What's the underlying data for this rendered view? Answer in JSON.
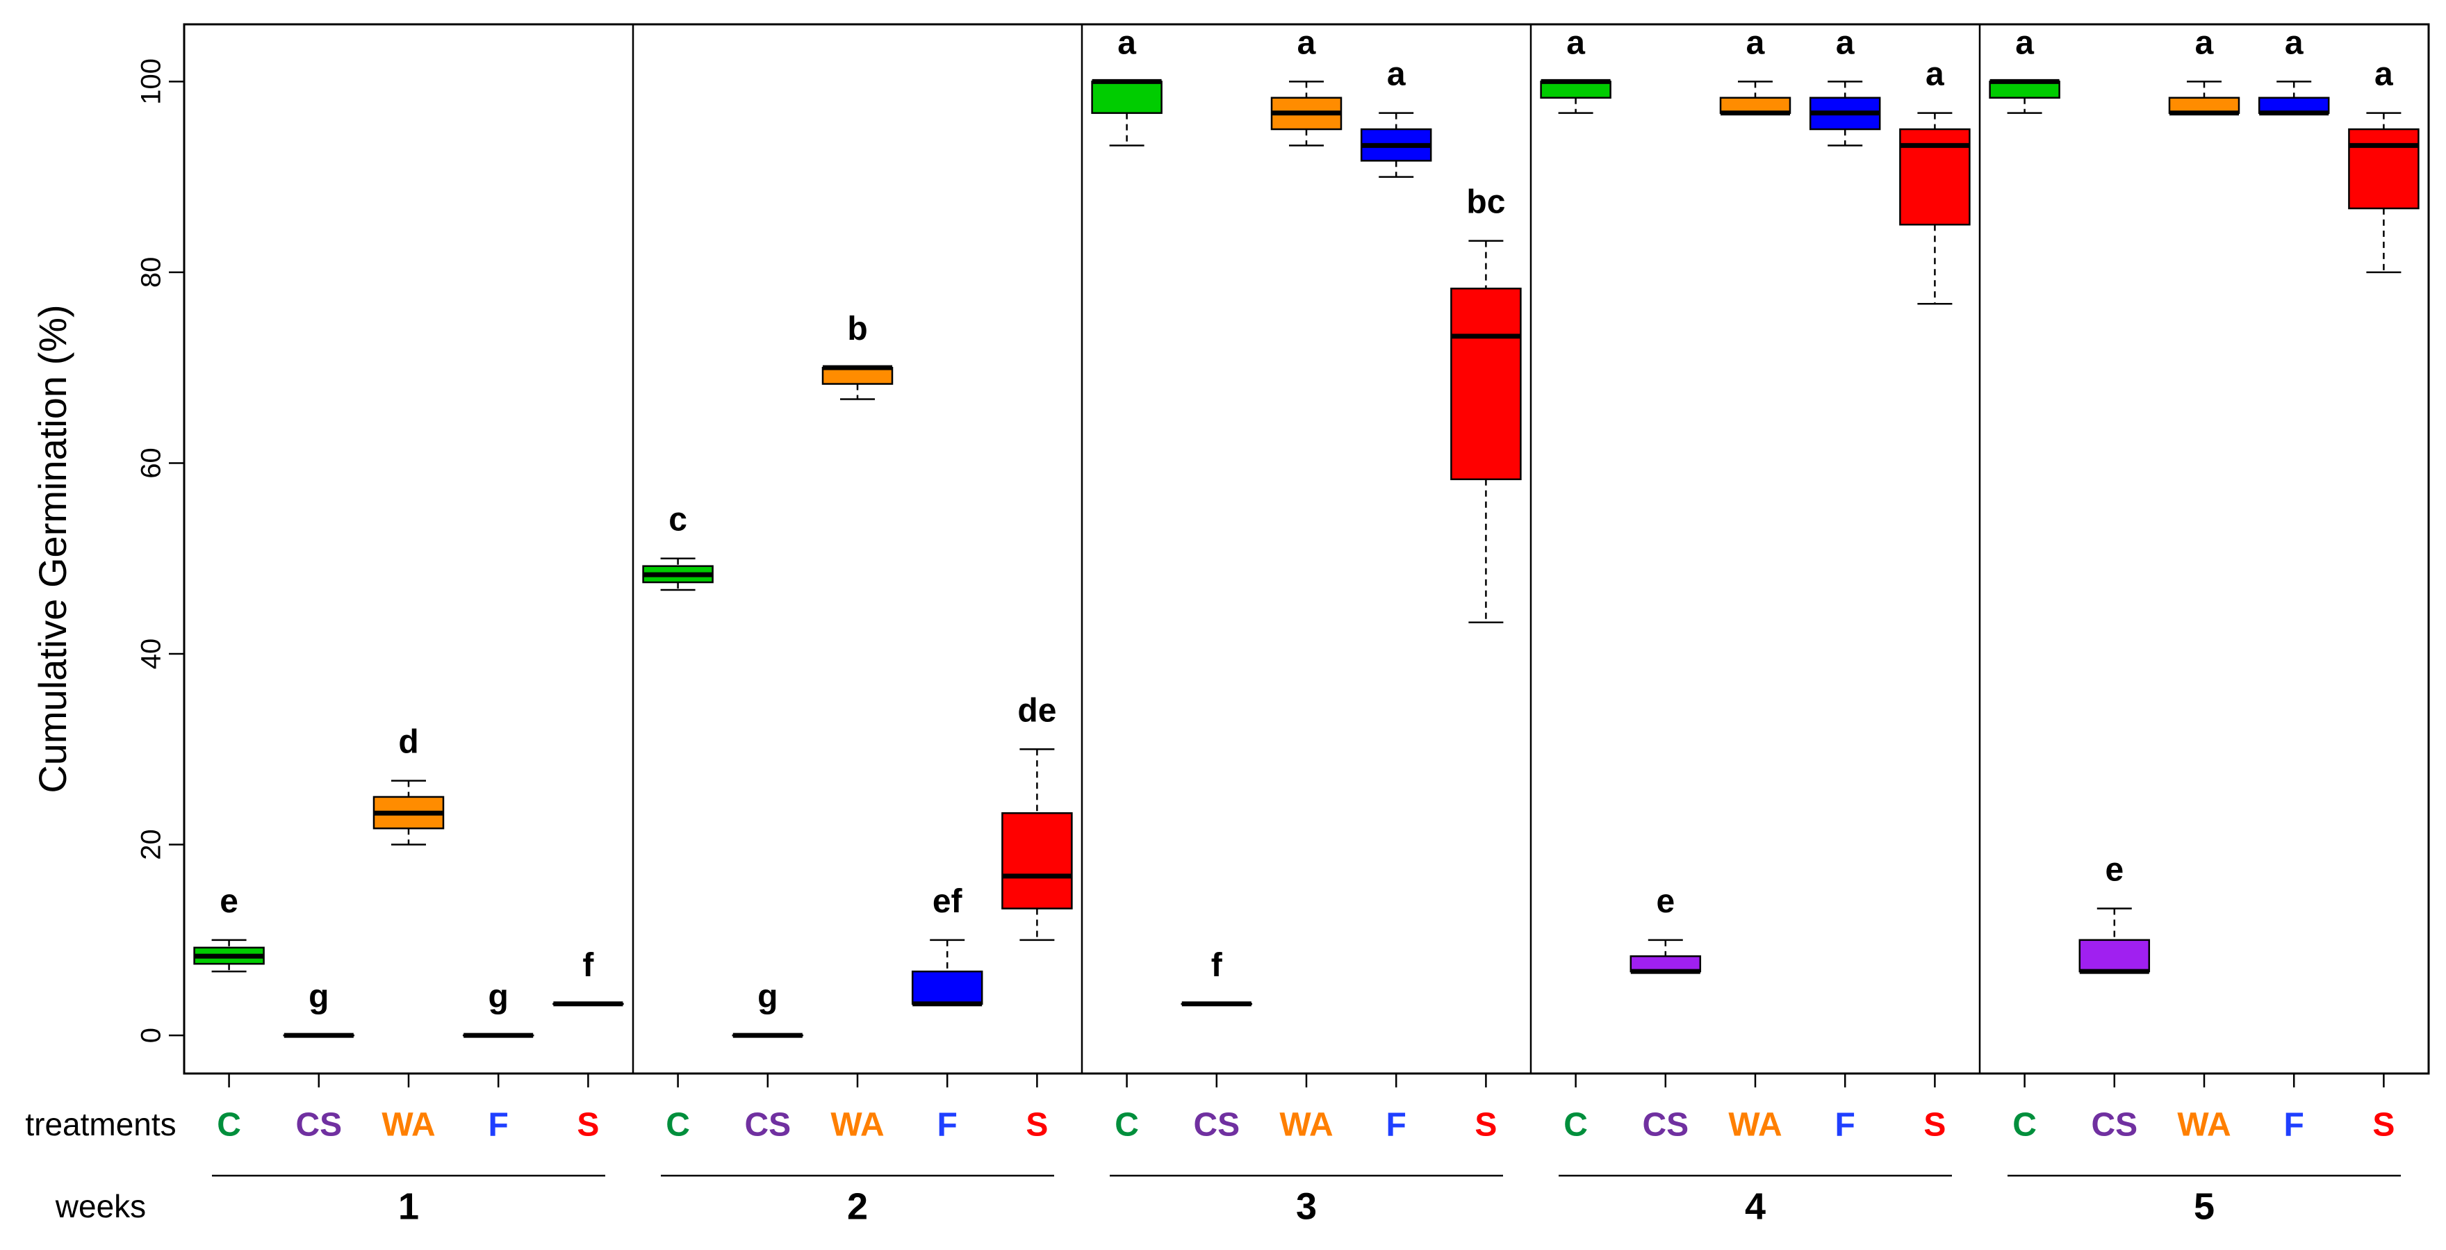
{
  "chart_data": {
    "type": "boxplot",
    "ylabel": "Cumulative Germination (%)",
    "ylim": [
      -4,
      106
    ],
    "yticks": [
      0,
      20,
      40,
      60,
      80,
      100
    ],
    "row_labels": {
      "treatments": "treatments",
      "weeks": "weeks"
    },
    "treatments": [
      {
        "code": "C",
        "color": "#00cc00",
        "label_color": "#008f3c"
      },
      {
        "code": "CS",
        "color": "#a020f0",
        "label_color": "#7030a0"
      },
      {
        "code": "WA",
        "color": "#ff8c00",
        "label_color": "#ff7f00"
      },
      {
        "code": "F",
        "color": "#0000ff",
        "label_color": "#1f3fff"
      },
      {
        "code": "S",
        "color": "#ff0000",
        "label_color": "#ff0000"
      }
    ],
    "weeks": [
      {
        "week": "1",
        "boxes": [
          {
            "t": "C",
            "min": 6.7,
            "q1": 7.5,
            "median": 8.3,
            "q3": 9.2,
            "max": 10,
            "sig": "e"
          },
          {
            "t": "CS",
            "min": 0,
            "q1": 0,
            "median": 0,
            "q3": 0,
            "max": 0,
            "sig": "g"
          },
          {
            "t": "WA",
            "min": 20,
            "q1": 21.7,
            "median": 23.3,
            "q3": 25,
            "max": 26.7,
            "sig": "d"
          },
          {
            "t": "F",
            "min": 0,
            "q1": 0,
            "median": 0,
            "q3": 0,
            "max": 0,
            "sig": "g"
          },
          {
            "t": "S",
            "min": 3.3,
            "q1": 3.3,
            "median": 3.3,
            "q3": 3.3,
            "max": 3.3,
            "sig": "f"
          }
        ]
      },
      {
        "week": "2",
        "boxes": [
          {
            "t": "C",
            "min": 46.7,
            "q1": 47.5,
            "median": 48.3,
            "q3": 49.2,
            "max": 50,
            "sig": "c"
          },
          {
            "t": "CS",
            "min": 0,
            "q1": 0,
            "median": 0,
            "q3": 0,
            "max": 0,
            "sig": "g"
          },
          {
            "t": "WA",
            "min": 66.7,
            "q1": 68.3,
            "median": 70,
            "q3": 70,
            "max": 70,
            "sig": "b"
          },
          {
            "t": "F",
            "min": 3.3,
            "q1": 3.3,
            "median": 3.3,
            "q3": 6.7,
            "max": 10,
            "sig": "ef"
          },
          {
            "t": "S",
            "min": 10,
            "q1": 13.3,
            "median": 16.7,
            "q3": 23.3,
            "max": 30,
            "sig": "de"
          }
        ]
      },
      {
        "week": "3",
        "boxes": [
          {
            "t": "C",
            "min": 93.3,
            "q1": 96.7,
            "median": 100,
            "q3": 100,
            "max": 100,
            "sig": "a"
          },
          {
            "t": "CS",
            "min": 3.3,
            "q1": 3.3,
            "median": 3.3,
            "q3": 3.3,
            "max": 3.3,
            "sig": "f"
          },
          {
            "t": "WA",
            "min": 93.3,
            "q1": 95,
            "median": 96.7,
            "q3": 98.3,
            "max": 100,
            "sig": "a"
          },
          {
            "t": "F",
            "min": 90,
            "q1": 91.7,
            "median": 93.3,
            "q3": 95,
            "max": 96.7,
            "sig": "a"
          },
          {
            "t": "S",
            "min": 43.3,
            "q1": 58.3,
            "median": 73.3,
            "q3": 78.3,
            "max": 83.3,
            "sig": "bc"
          }
        ]
      },
      {
        "week": "4",
        "boxes": [
          {
            "t": "C",
            "min": 96.7,
            "q1": 98.3,
            "median": 100,
            "q3": 100,
            "max": 100,
            "sig": "a"
          },
          {
            "t": "CS",
            "min": 6.7,
            "q1": 6.7,
            "median": 6.7,
            "q3": 8.3,
            "max": 10,
            "sig": "e"
          },
          {
            "t": "WA",
            "min": 96.7,
            "q1": 96.7,
            "median": 96.7,
            "q3": 98.3,
            "max": 100,
            "sig": "a"
          },
          {
            "t": "F",
            "min": 93.3,
            "q1": 95,
            "median": 96.7,
            "q3": 98.3,
            "max": 100,
            "sig": "a"
          },
          {
            "t": "S",
            "min": 76.7,
            "q1": 85,
            "median": 93.3,
            "q3": 95,
            "max": 96.7,
            "sig": "a"
          }
        ]
      },
      {
        "week": "5",
        "boxes": [
          {
            "t": "C",
            "min": 96.7,
            "q1": 98.3,
            "median": 100,
            "q3": 100,
            "max": 100,
            "sig": "a"
          },
          {
            "t": "CS",
            "min": 6.7,
            "q1": 6.7,
            "median": 6.7,
            "q3": 10,
            "max": 13.3,
            "sig": "e"
          },
          {
            "t": "WA",
            "min": 96.7,
            "q1": 96.7,
            "median": 96.7,
            "q3": 98.3,
            "max": 100,
            "sig": "a"
          },
          {
            "t": "F",
            "min": 96.7,
            "q1": 96.7,
            "median": 96.7,
            "q3": 98.3,
            "max": 100,
            "sig": "a"
          },
          {
            "t": "S",
            "min": 80,
            "q1": 86.7,
            "median": 93.3,
            "q3": 95,
            "max": 96.7,
            "sig": "a"
          }
        ]
      }
    ]
  }
}
